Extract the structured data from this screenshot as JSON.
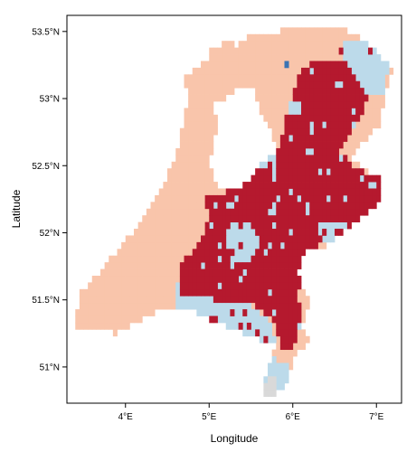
{
  "map": {
    "xlabel": "Longitude",
    "ylabel": "Latitude",
    "lon_range": [
      3.3,
      7.3
    ],
    "lat_range": [
      50.73,
      53.62
    ],
    "x_ticks": [
      {
        "value": 4,
        "label": "4°E"
      },
      {
        "value": 5,
        "label": "5°E"
      },
      {
        "value": 6,
        "label": "6°E"
      },
      {
        "value": 7,
        "label": "7°E"
      }
    ],
    "y_ticks": [
      {
        "value": 51,
        "label": "51°N"
      },
      {
        "value": 51.5,
        "label": "51.5°N"
      },
      {
        "value": 52,
        "label": "52°N"
      },
      {
        "value": 52.5,
        "label": "52.5°N"
      },
      {
        "value": 53,
        "label": "53°N"
      },
      {
        "value": 53.5,
        "label": "53.5°N"
      }
    ],
    "region_colors": {
      "peach": "#f9c5ab",
      "crimson": "#b5192e",
      "light-blue": "#bcdaea",
      "blue": "#3b73b3",
      "grey": "#d9d9d9"
    },
    "border_color": "#000000",
    "grid": false
  }
}
